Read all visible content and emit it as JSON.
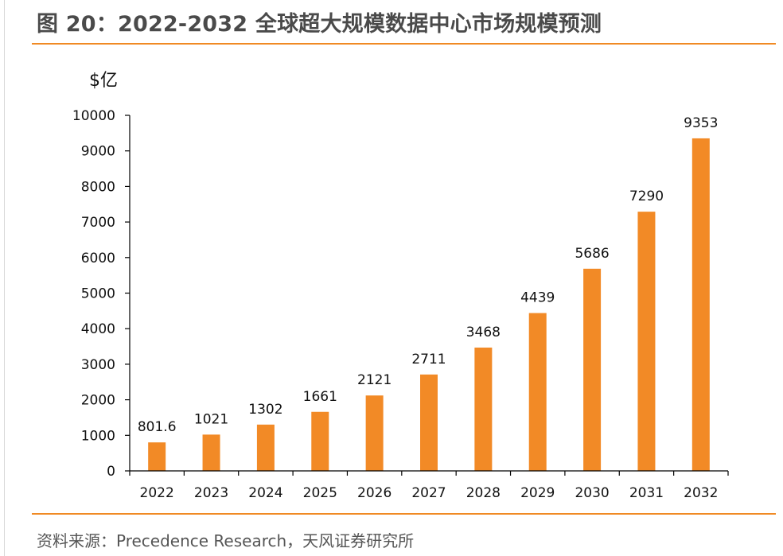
{
  "figure": {
    "title": "图 20：2022-2032 全球超大规模数据中心市场规模预测",
    "source": "资料来源：Precedence Research，天风证券研究所"
  },
  "colors": {
    "accent": "#f08a24",
    "bar": "#f28a26",
    "axis": "#000000",
    "title_text": "#4a4a4a",
    "source_text": "#555555"
  },
  "chart_data": {
    "type": "bar",
    "title": "",
    "xlabel": "",
    "ylabel": "$亿",
    "categories": [
      "2022",
      "2023",
      "2024",
      "2025",
      "2026",
      "2027",
      "2028",
      "2029",
      "2030",
      "2031",
      "2032"
    ],
    "values": [
      801.6,
      1021,
      1302,
      1661,
      2121,
      2711,
      3468,
      4439,
      5686,
      7290,
      9353
    ],
    "data_labels": [
      "801.6",
      "1021",
      "1302",
      "1661",
      "2121",
      "2711",
      "3468",
      "4439",
      "5686",
      "7290",
      "9353"
    ],
    "ylim": [
      0,
      10000
    ],
    "yticks": [
      0,
      1000,
      2000,
      3000,
      4000,
      5000,
      6000,
      7000,
      8000,
      9000,
      10000
    ],
    "ytick_labels": [
      "0",
      "1000",
      "2000",
      "3000",
      "4000",
      "5000",
      "6000",
      "7000",
      "8000",
      "9000",
      "10000"
    ],
    "grid": false,
    "legend": "none"
  }
}
